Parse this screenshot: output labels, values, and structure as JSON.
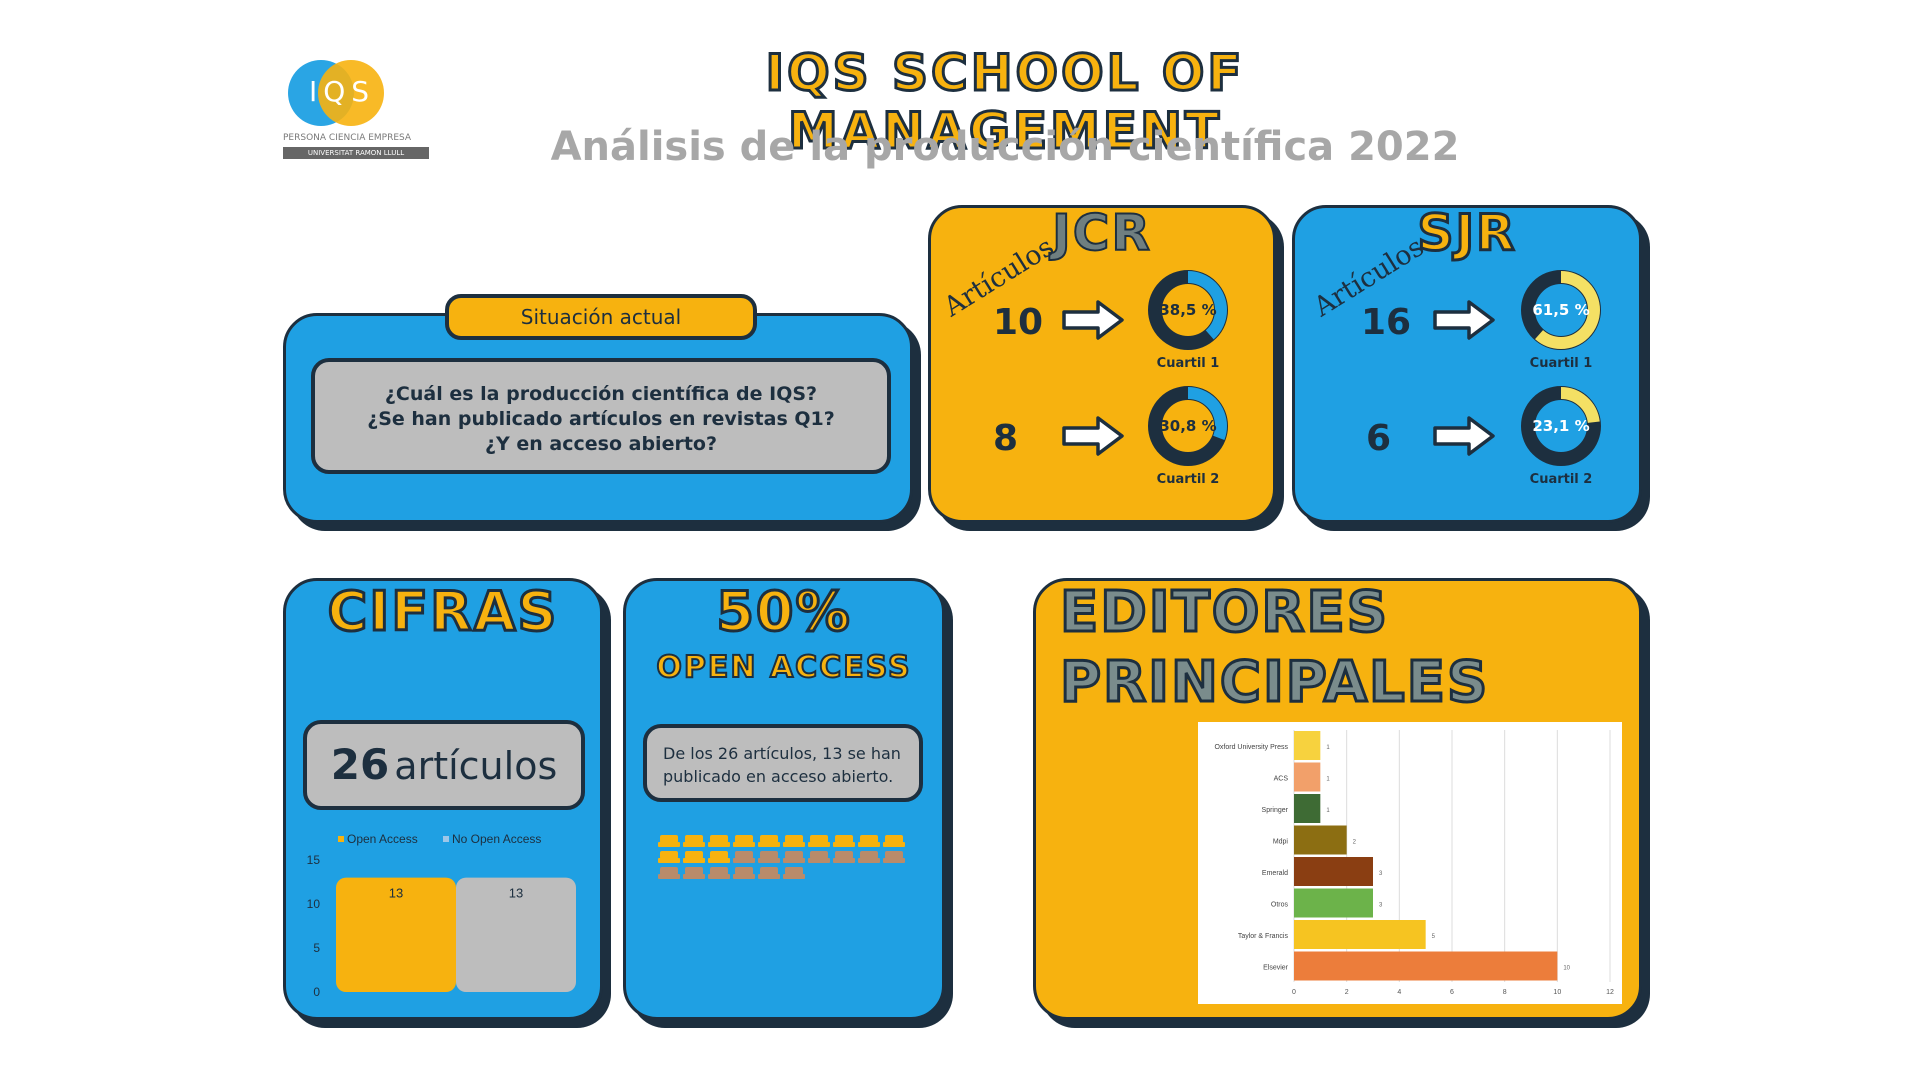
{
  "header": {
    "logo_text": "IQS",
    "logo_tagline": "PERSONA CIENCIA EMPRESA",
    "logo_university": "UNIVERSITAT RAMON LLULL",
    "title": "IQS SCHOOL OF MANAGEMENT",
    "subtitle": "Análisis de la producción científica 2022"
  },
  "situacion": {
    "tab_label": "Situación actual",
    "lines": [
      "¿Cuál es la producción científica de IQS?",
      "¿Se han publicado artículos en revistas Q1?",
      "¿Y en acceso abierto?"
    ]
  },
  "jcr": {
    "title": "JCR",
    "articulos_label": "Artículos",
    "rows": [
      {
        "count": "10",
        "percent_label": "38,5 %",
        "percent": 38.5,
        "quartile": "Cuartil 1"
      },
      {
        "count": "8",
        "percent_label": "30,8 %",
        "percent": 30.8,
        "quartile": "Cuartil 2"
      }
    ]
  },
  "sjr": {
    "title": "SJR",
    "articulos_label": "Artículos",
    "rows": [
      {
        "count": "16",
        "percent_label": "61,5 %",
        "percent": 61.5,
        "quartile": "Cuartil 1"
      },
      {
        "count": "6",
        "percent_label": "23,1 %",
        "percent": 23.1,
        "quartile": "Cuartil 2"
      }
    ]
  },
  "cifras": {
    "title": "CIFRAS",
    "total_number": "26",
    "total_word": "artículos"
  },
  "open_access": {
    "title": "50%",
    "subtitle": "OPEN ACCESS",
    "description": "De los 26 artículos, 13 se han publicado en acceso abierto.",
    "open_count": 13,
    "total_count": 26
  },
  "editores": {
    "title_line1": "EDITORES",
    "title_line2": "PRINCIPALES"
  },
  "colors": {
    "blue": "#1fa0e3",
    "yellow": "#f7b20f",
    "navy": "#1d2f3f",
    "gray": "#bdbdbd",
    "donut_dark": "#1d2f3f",
    "donut_jcr_fill": "#1fa0e3",
    "donut_sjr_fill": "#f4e064"
  },
  "chart_data": [
    {
      "type": "bar",
      "legend": [
        "Open Access",
        "No Open Access"
      ],
      "legend_position": "top",
      "categories": [
        "Open Access",
        "No Open Access"
      ],
      "values": [
        13,
        13
      ],
      "series_colors": [
        "#f7b20f",
        "#bdbdbd"
      ],
      "ylim": [
        0,
        15
      ],
      "yticks": [
        0,
        5,
        10,
        15
      ]
    },
    {
      "type": "bar",
      "orientation": "horizontal",
      "categories": [
        "Oxford University Press",
        "ACS",
        "Springer",
        "Mdpi",
        "Emerald",
        "Otros",
        "Taylor & Francis",
        "Elsevier"
      ],
      "values": [
        1,
        1,
        1,
        2,
        3,
        3,
        5,
        10
      ],
      "bar_colors": [
        "#f7d23e",
        "#f2a06a",
        "#3e6b34",
        "#8c6e12",
        "#8a3e12",
        "#6cb34a",
        "#f6c421",
        "#ec7d3b"
      ],
      "xlim": [
        0,
        12
      ],
      "xticks": [
        0,
        2,
        4,
        6,
        8,
        10,
        12
      ],
      "grid": true
    }
  ]
}
